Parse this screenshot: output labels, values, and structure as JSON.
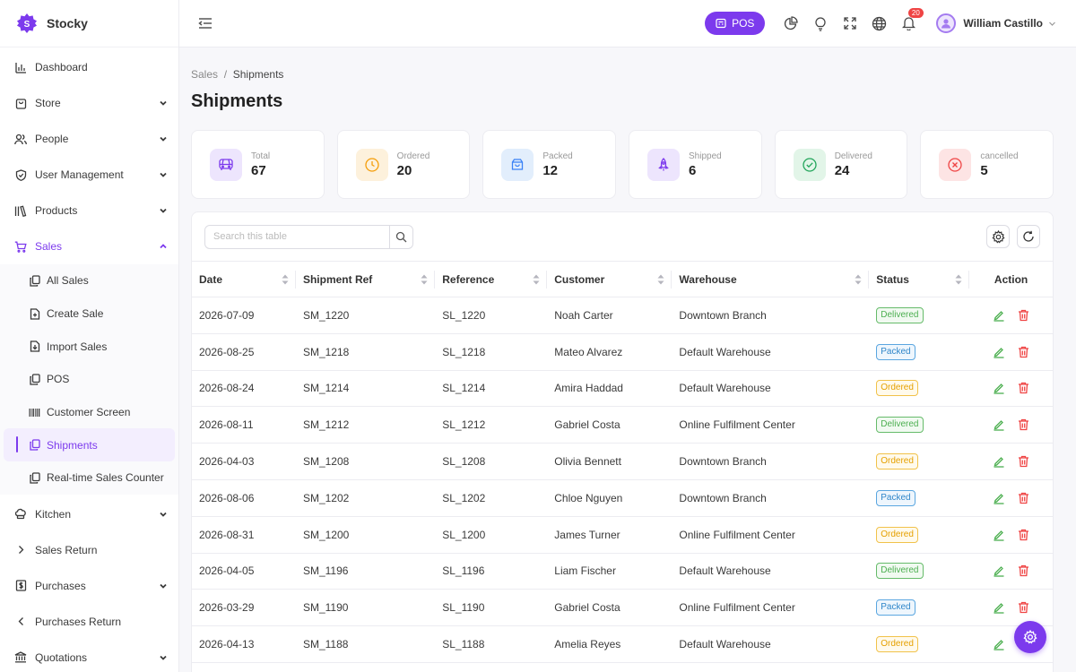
{
  "brand": {
    "name": "Stocky",
    "logo_letter": "S"
  },
  "sidebar": {
    "items": [
      {
        "label": "Dashboard",
        "icon": "bar-chart-icon",
        "has_chevron": false
      },
      {
        "label": "Store",
        "icon": "bag-icon",
        "has_chevron": true
      },
      {
        "label": "People",
        "icon": "users-icon",
        "has_chevron": true
      },
      {
        "label": "User Management",
        "icon": "shield-icon",
        "has_chevron": true
      },
      {
        "label": "Products",
        "icon": "books-icon",
        "has_chevron": true
      },
      {
        "label": "Sales",
        "icon": "cart-icon",
        "has_chevron": true,
        "expanded": true
      }
    ],
    "sales_children": [
      {
        "label": "All Sales",
        "icon": "copy-icon"
      },
      {
        "label": "Create Sale",
        "icon": "file-plus-icon"
      },
      {
        "label": "Import Sales",
        "icon": "file-import-icon"
      },
      {
        "label": "POS",
        "icon": "copy-icon"
      },
      {
        "label": "Customer Screen",
        "icon": "barcode-icon"
      },
      {
        "label": "Shipments",
        "icon": "copy-icon",
        "current": true
      },
      {
        "label": "Real-time Sales Counter",
        "icon": "copy-icon"
      }
    ],
    "items_after": [
      {
        "label": "Kitchen",
        "icon": "chef-hat-icon",
        "has_chevron": true
      },
      {
        "label": "Sales Return",
        "icon": "chevron-right-icon",
        "has_chevron": false
      },
      {
        "label": "Purchases",
        "icon": "receipt-dollar-icon",
        "has_chevron": true
      },
      {
        "label": "Purchases Return",
        "icon": "chevron-left-icon",
        "has_chevron": false
      },
      {
        "label": "Quotations",
        "icon": "bank-icon",
        "has_chevron": true
      }
    ]
  },
  "topbar": {
    "pos_label": "POS",
    "notification_count": "20",
    "user_name": "William Castillo"
  },
  "breadcrumb": {
    "parent": "Sales",
    "separator": "/",
    "current": "Shipments"
  },
  "page_title": "Shipments",
  "stats": [
    {
      "label": "Total",
      "value": "67",
      "icon": "van-icon",
      "color": "#7c3aed",
      "bg": "#ede5fd"
    },
    {
      "label": "Ordered",
      "value": "20",
      "icon": "clock-icon",
      "color": "#f59e0b",
      "bg": "#fdf1dc"
    },
    {
      "label": "Packed",
      "value": "12",
      "icon": "package-icon",
      "color": "#3b82f6",
      "bg": "#e2eefc"
    },
    {
      "label": "Shipped",
      "value": "6",
      "icon": "rocket-icon",
      "color": "#7c3aed",
      "bg": "#ede5fd"
    },
    {
      "label": "Delivered",
      "value": "24",
      "icon": "check-circle-icon",
      "color": "#22a55a",
      "bg": "#e2f5e8"
    },
    {
      "label": "cancelled",
      "value": "5",
      "icon": "x-circle-icon",
      "color": "#ef4444",
      "bg": "#fde4e4"
    }
  ],
  "search": {
    "placeholder": "Search this table"
  },
  "table": {
    "columns": [
      "Date",
      "Shipment Ref",
      "Reference",
      "Customer",
      "Warehouse",
      "Status",
      "Action"
    ],
    "rows": [
      {
        "date": "2026-07-09",
        "ref": "SM_1220",
        "reference": "SL_1220",
        "customer": "Noah Carter",
        "warehouse": "Downtown Branch",
        "status": "Delivered"
      },
      {
        "date": "2026-08-25",
        "ref": "SM_1218",
        "reference": "SL_1218",
        "customer": "Mateo Alvarez",
        "warehouse": "Default Warehouse",
        "status": "Packed"
      },
      {
        "date": "2026-08-24",
        "ref": "SM_1214",
        "reference": "SL_1214",
        "customer": "Amira Haddad",
        "warehouse": "Default Warehouse",
        "status": "Ordered"
      },
      {
        "date": "2026-08-11",
        "ref": "SM_1212",
        "reference": "SL_1212",
        "customer": "Gabriel Costa",
        "warehouse": "Online Fulfilment Center",
        "status": "Delivered"
      },
      {
        "date": "2026-04-03",
        "ref": "SM_1208",
        "reference": "SL_1208",
        "customer": "Olivia Bennett",
        "warehouse": "Downtown Branch",
        "status": "Ordered"
      },
      {
        "date": "2026-08-06",
        "ref": "SM_1202",
        "reference": "SL_1202",
        "customer": "Chloe Nguyen",
        "warehouse": "Downtown Branch",
        "status": "Packed"
      },
      {
        "date": "2026-08-31",
        "ref": "SM_1200",
        "reference": "SL_1200",
        "customer": "James Turner",
        "warehouse": "Online Fulfilment Center",
        "status": "Ordered"
      },
      {
        "date": "2026-04-05",
        "ref": "SM_1196",
        "reference": "SL_1196",
        "customer": "Liam Fischer",
        "warehouse": "Default Warehouse",
        "status": "Delivered"
      },
      {
        "date": "2026-03-29",
        "ref": "SM_1190",
        "reference": "SL_1190",
        "customer": "Gabriel Costa",
        "warehouse": "Online Fulfilment Center",
        "status": "Packed"
      },
      {
        "date": "2026-04-13",
        "ref": "SM_1188",
        "reference": "SL_1188",
        "customer": "Amelia Reyes",
        "warehouse": "Default Warehouse",
        "status": "Ordered"
      }
    ]
  },
  "colors": {
    "accent": "#7c3aed",
    "edit": "#4caf50",
    "delete": "#ef4444"
  }
}
